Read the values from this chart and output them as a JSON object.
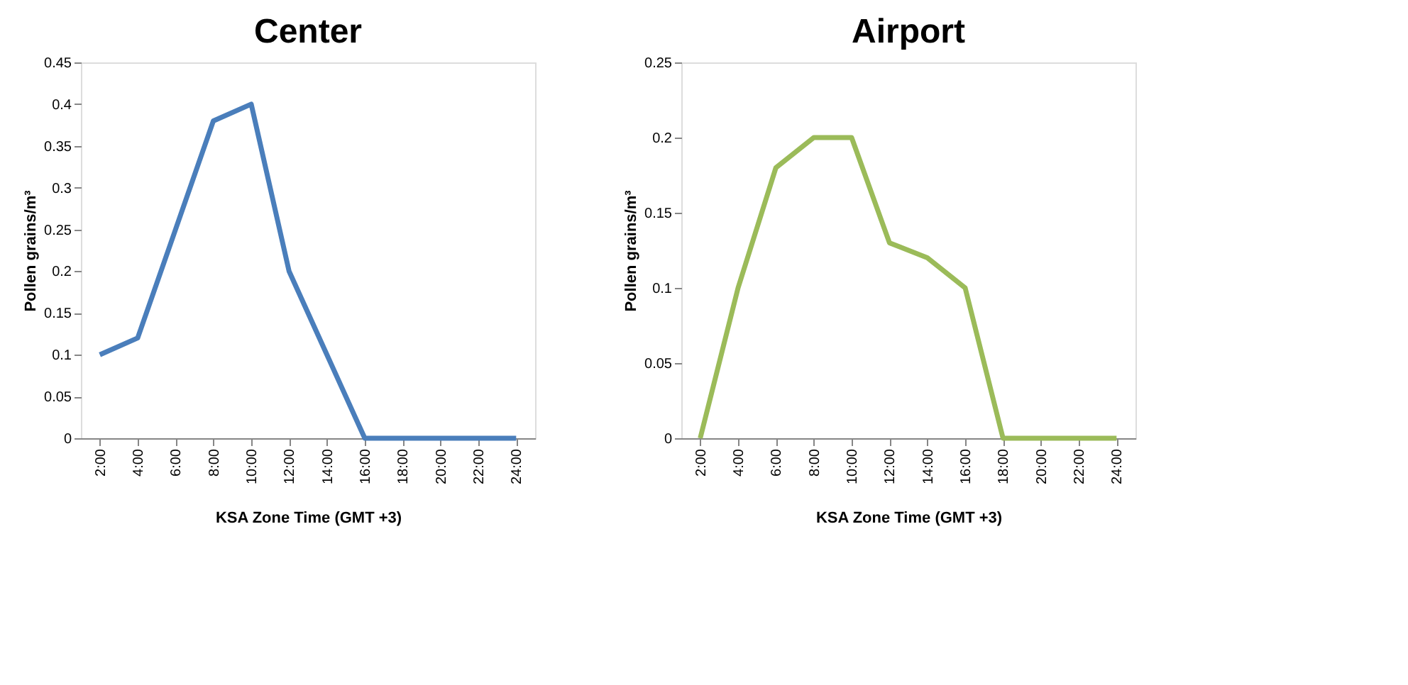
{
  "chart_data": [
    {
      "type": "line",
      "title": "Center",
      "xlabel": "KSA Zone Time (GMT +3)",
      "ylabel": "Pollen grains/m³",
      "categories": [
        "2:00",
        "4:00",
        "6:00",
        "8:00",
        "10:00",
        "12:00",
        "14:00",
        "16:00",
        "18:00",
        "20:00",
        "22:00",
        "24:00"
      ],
      "series": [
        {
          "color": "#4a7ebb",
          "values": [
            0.1,
            0.12,
            0.25,
            0.38,
            0.4,
            0.2,
            0.1,
            0,
            0,
            0,
            0,
            0
          ]
        }
      ],
      "ylim": [
        0,
        0.45
      ],
      "yticks": [
        0,
        0.05,
        0.1,
        0.15,
        0.2,
        0.25,
        0.3,
        0.35,
        0.4,
        0.45
      ],
      "grid": false,
      "marker": "none",
      "line_style": "solid"
    },
    {
      "type": "line",
      "title": "Airport",
      "xlabel": "KSA Zone Time (GMT +3)",
      "ylabel": "Pollen grains/m³",
      "categories": [
        "2:00",
        "4:00",
        "6:00",
        "8:00",
        "10:00",
        "12:00",
        "14:00",
        "16:00",
        "18:00",
        "20:00",
        "22:00",
        "24:00"
      ],
      "series": [
        {
          "color": "#9bbb59",
          "values": [
            0,
            0.1,
            0.18,
            0.2,
            0.2,
            0.13,
            0.12,
            0.1,
            0,
            0,
            0,
            0
          ]
        }
      ],
      "ylim": [
        0,
        0.25
      ],
      "yticks": [
        0,
        0.05,
        0.1,
        0.15,
        0.2,
        0.25
      ],
      "grid": false,
      "marker": "none",
      "line_style": "solid"
    }
  ]
}
